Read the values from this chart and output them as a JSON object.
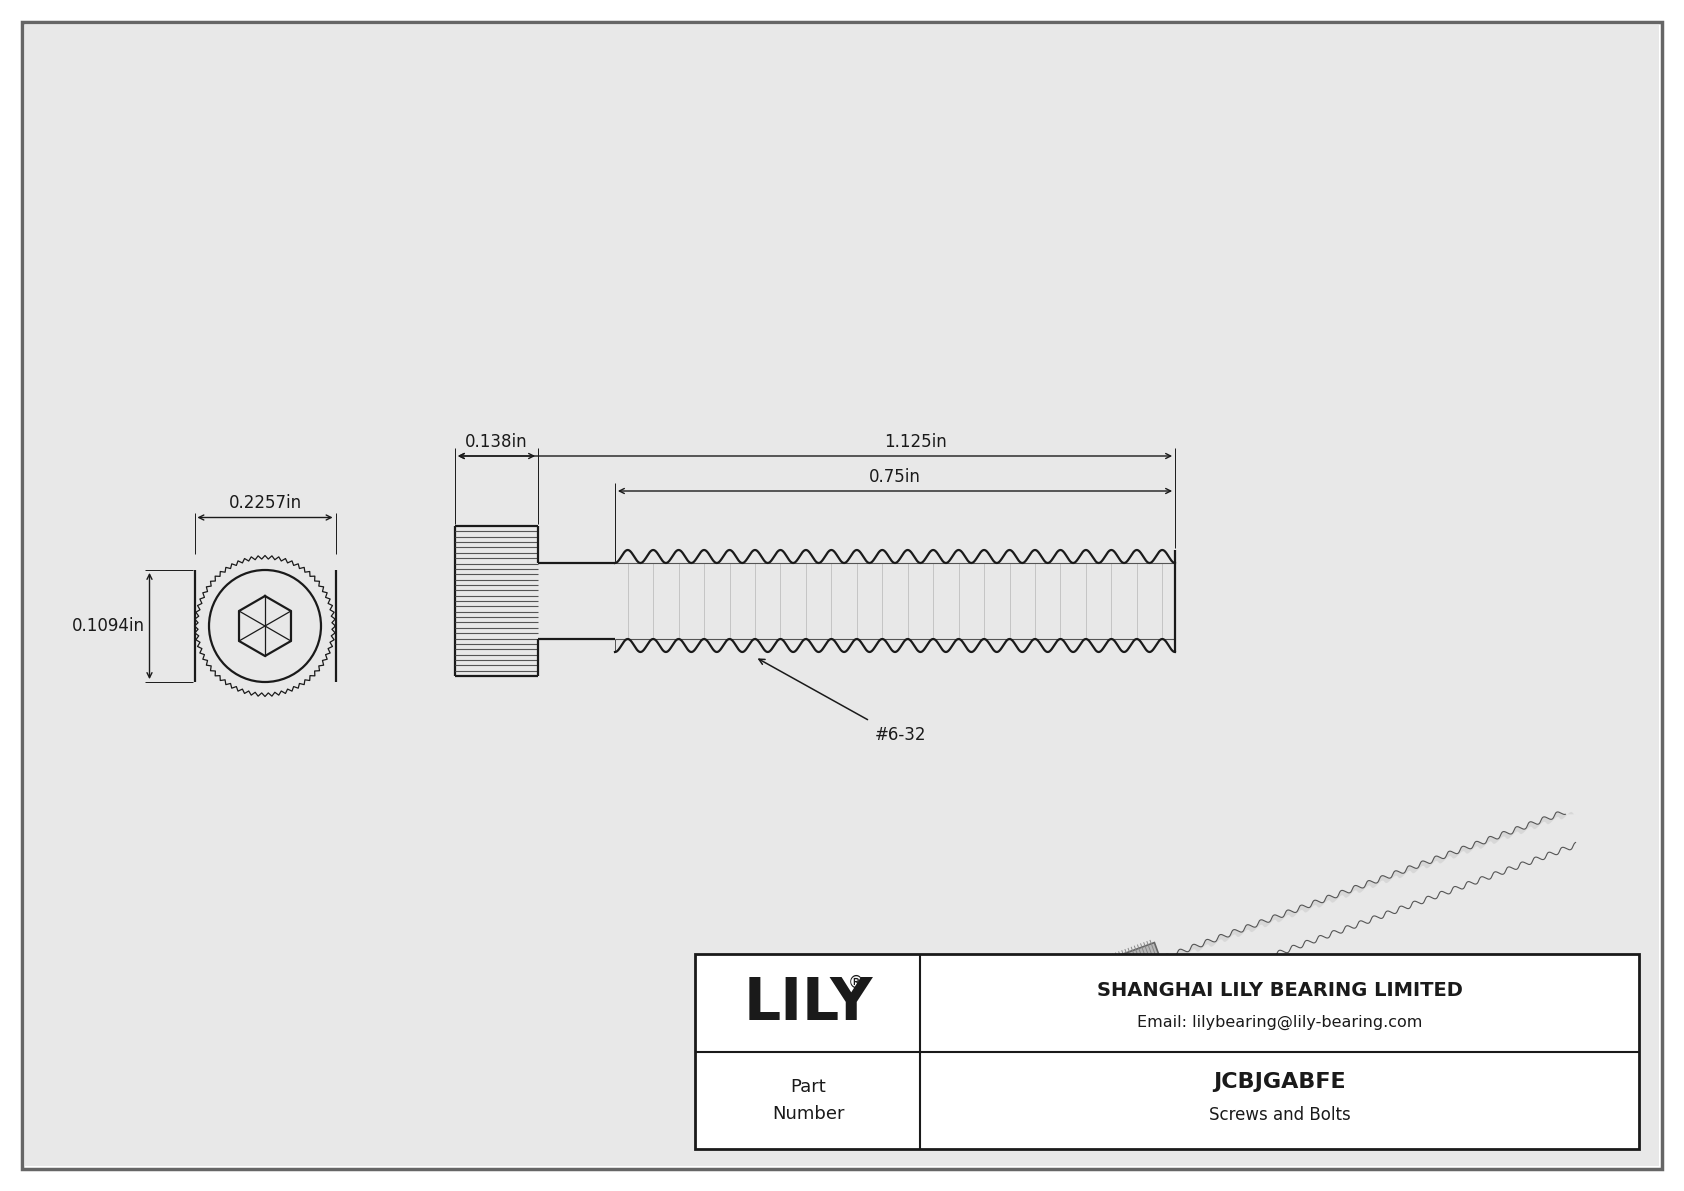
{
  "bg_color": "#e8e8e8",
  "inner_bg": "#ffffff",
  "line_color": "#1a1a1a",
  "title": "JCBJGABFE",
  "subtitle": "Screws and Bolts",
  "company": "SHANGHAI LILY BEARING LIMITED",
  "email": "Email: lilybearing@lily-bearing.com",
  "part_label": "Part\nNumber",
  "dim_head_width": "0.2257in",
  "dim_head_height": "0.1094in",
  "dim_shank_len": "0.138in",
  "dim_total_len": "1.125in",
  "dim_thread_len": "0.75in",
  "thread_label": "#6-32",
  "logo_text": "LILY",
  "logo_sup": "®",
  "border_color": "#888888"
}
